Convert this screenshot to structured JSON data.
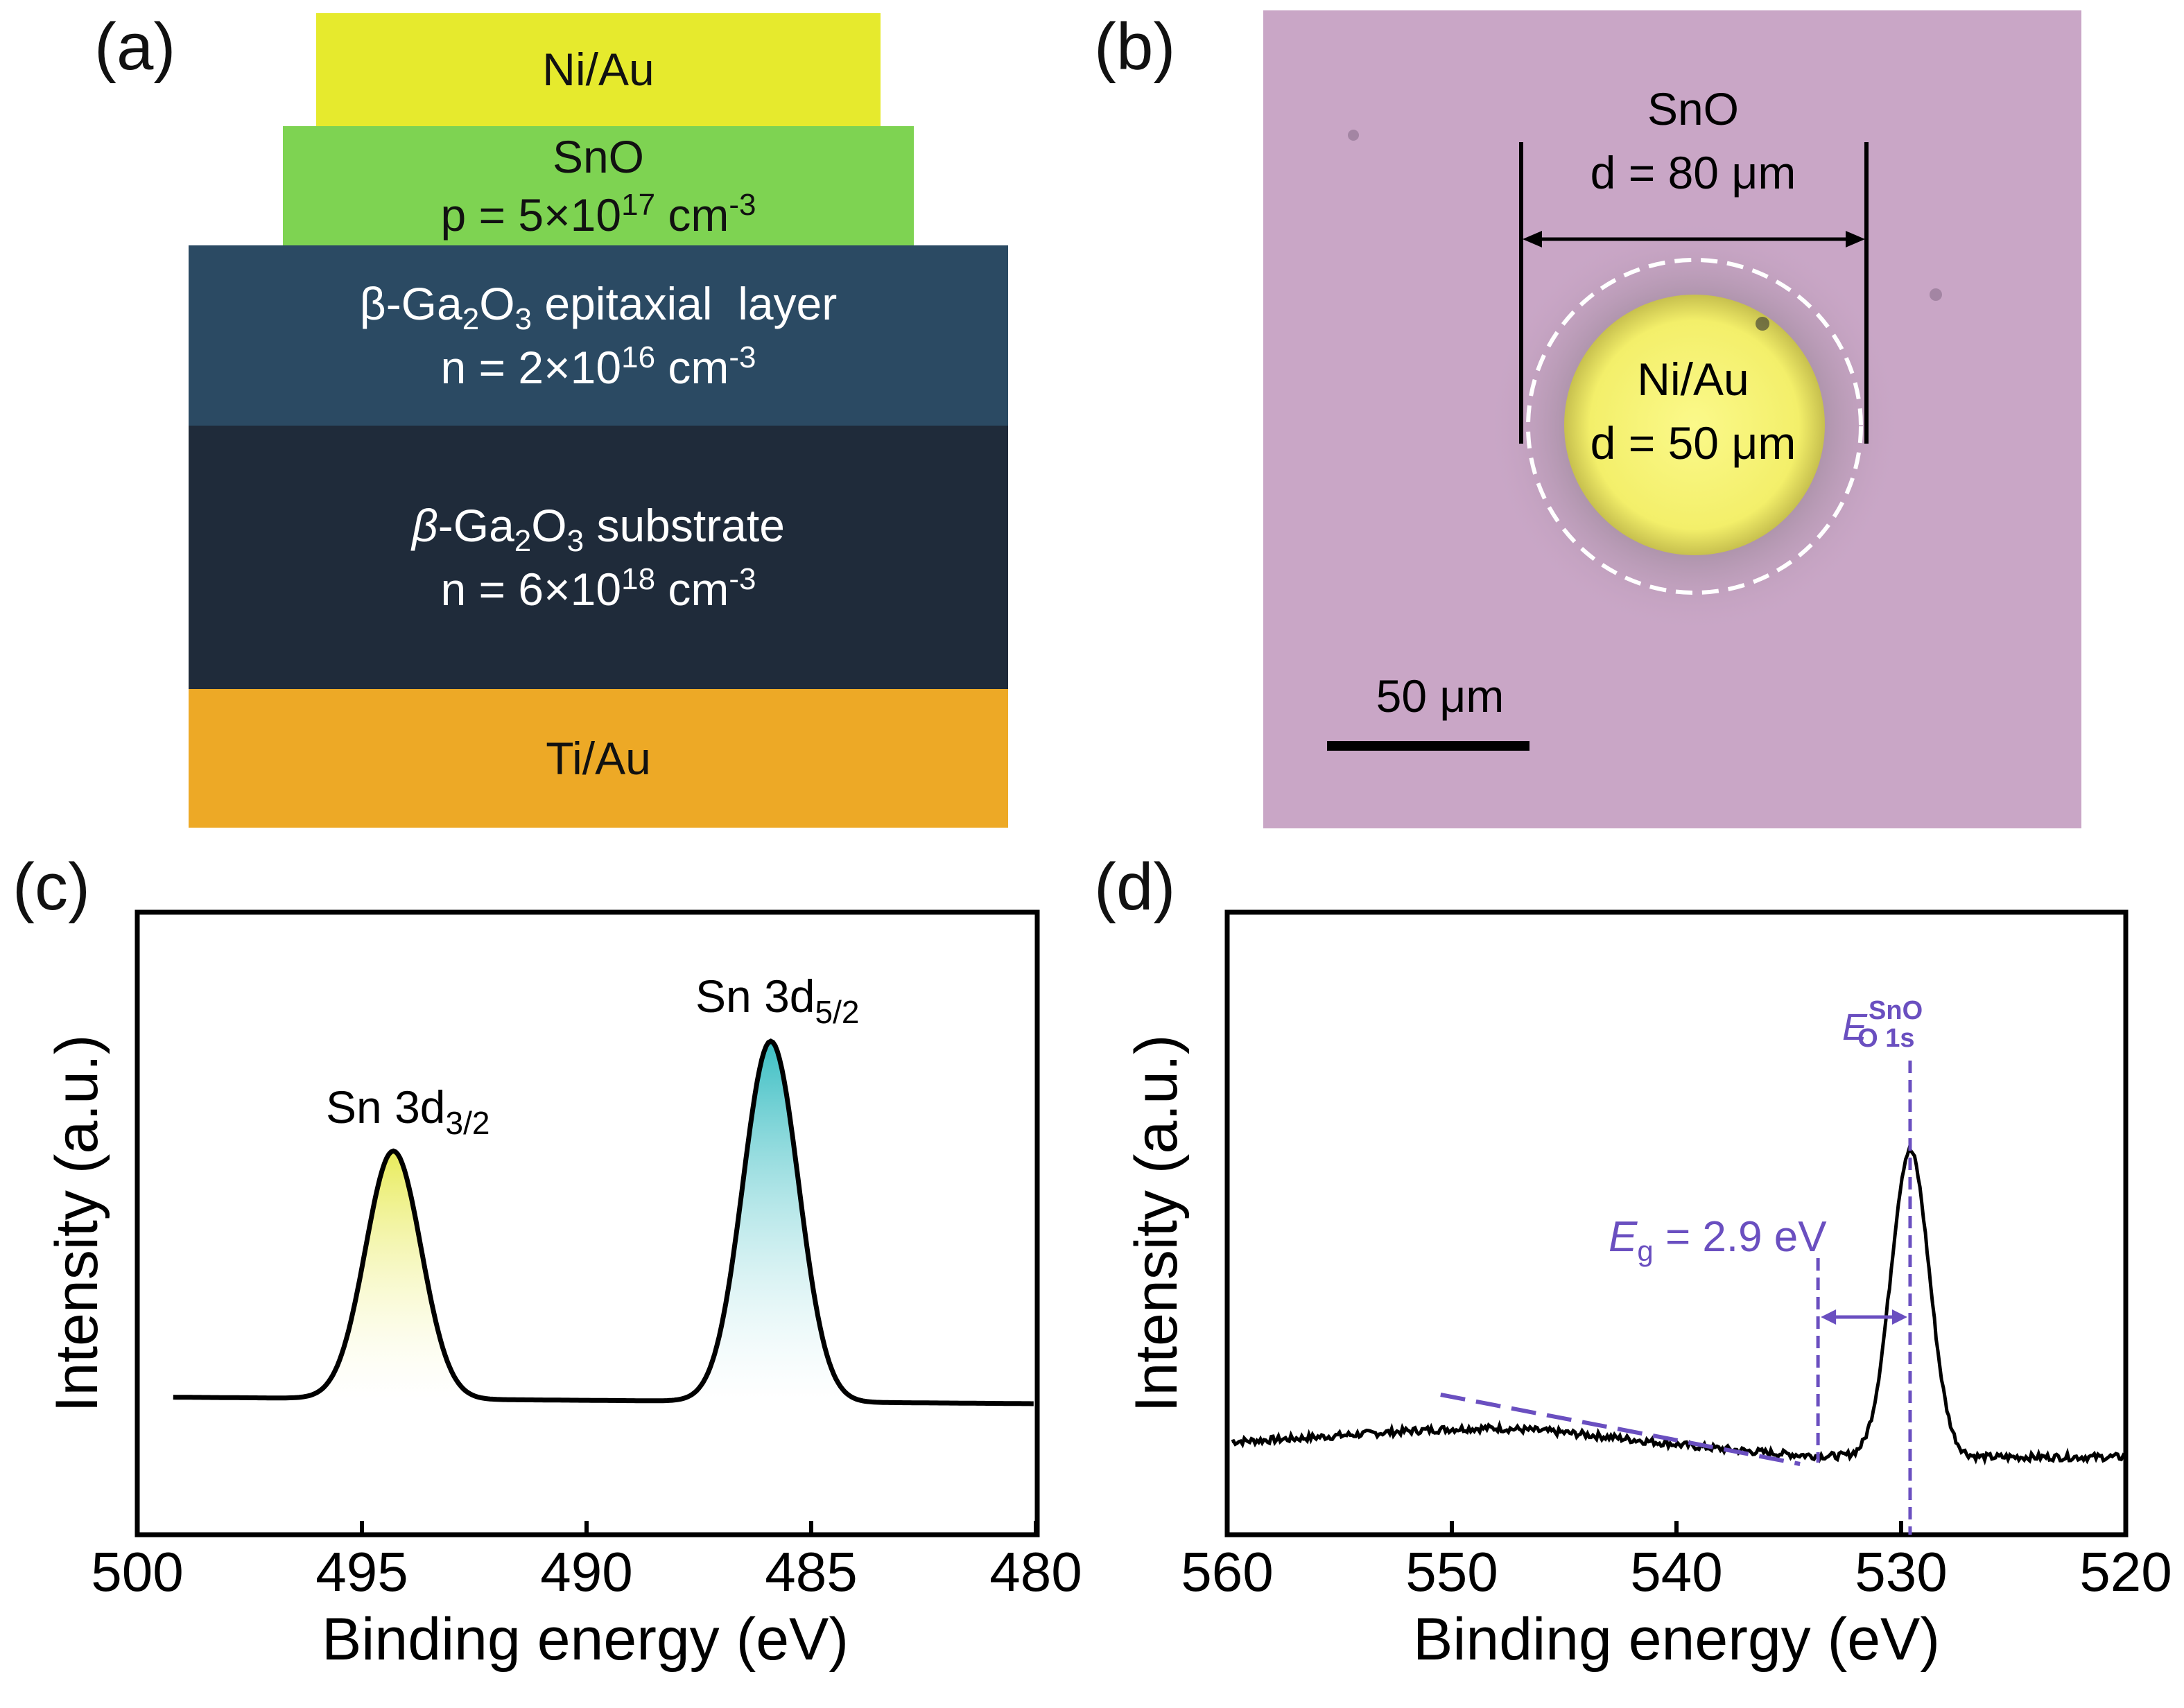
{
  "panels": {
    "a": "(a)",
    "b": "(b)",
    "c": "(c)",
    "d": "(d)"
  },
  "stack": {
    "niau": {
      "label": "Ni/Au",
      "color": "#e6ea2d"
    },
    "sno": {
      "label": "SnO",
      "doping_prefix": "p = 5×10",
      "doping_exp": "17",
      "doping_unit": " cm",
      "doping_unit_exp": "-3",
      "color": "#7ed352"
    },
    "epi": {
      "name_prefix": "β-Ga",
      "name_sub1": "2",
      "name_mid": "O",
      "name_sub2": "3",
      "name_suffix": " epitaxial  layer",
      "doping_prefix": "n = 2×10",
      "doping_exp": "16",
      "doping_unit": " cm",
      "doping_unit_exp": "-3",
      "color": "#2b4a63"
    },
    "sub": {
      "name_prefix": "β",
      "name_rest": "-Ga",
      "name_sub1": "2",
      "name_mid": "O",
      "name_sub2": "3",
      "name_suffix": " substrate",
      "doping_prefix": "n = 6×10",
      "doping_exp": "18",
      "doping_unit": " cm",
      "doping_unit_exp": "-3",
      "color": "#1f2b3a"
    },
    "tiau": {
      "label": "Ti/Au",
      "color": "#eda926"
    }
  },
  "micrograph": {
    "sno_label": "SnO",
    "sno_diameter": "d = 80 μm",
    "niau_label": "Ni/Au",
    "niau_diameter": "d = 50 μm",
    "scalebar": "50 μm"
  },
  "chart_data": [
    {
      "type": "line",
      "panel": "c",
      "xlabel": "Binding energy (eV)",
      "ylabel": "Intensity (a.u.)",
      "xlim": [
        500,
        480
      ],
      "xticks": [
        "500",
        "495",
        "490",
        "485",
        "480"
      ],
      "peaks": [
        {
          "label_main": "Sn 3d",
          "label_sub": "3/2",
          "center": 494.3,
          "height": 0.55,
          "fill": "#eef08a"
        },
        {
          "label_main": "Sn 3d",
          "label_sub": "5/2",
          "center": 485.9,
          "height": 0.8,
          "fill": "#4fc3c8"
        }
      ]
    },
    {
      "type": "line",
      "panel": "d",
      "xlabel": "Binding energy (eV)",
      "ylabel": "Intensity (a.u.)",
      "xlim": [
        560,
        520
      ],
      "xticks": [
        "560",
        "550",
        "540",
        "530",
        "520"
      ],
      "peak_center": 529.6,
      "peak_label_main": "E",
      "peak_label_sup": "SnO",
      "peak_label_sub": "O 1s",
      "gap_label_main": "E",
      "gap_label_sub": "g",
      "gap_label_rest": " = 2.9 eV",
      "gap_edge": 533.7,
      "annotation_color": "#6a4fc0"
    }
  ]
}
